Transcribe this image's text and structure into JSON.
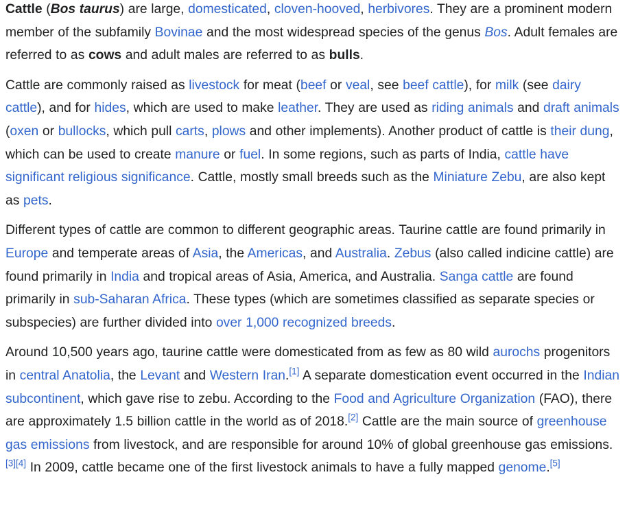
{
  "colors": {
    "text": "#202122",
    "link": "#3366cc",
    "background": "#ffffff"
  },
  "p1": {
    "cattle": "Cattle",
    "t1": " (",
    "bos_taurus": "Bos taurus",
    "t2": ") are large, ",
    "l_domesticated": "domesticated",
    "t3": ", ",
    "l_cloven": "cloven-hooved",
    "t4": ", ",
    "l_herbivores": "herbivores",
    "t5": ". They are a prominent modern member of the subfamily ",
    "l_bovinae": "Bovinae",
    "t6": " and the most widespread species of the genus ",
    "l_bos": "Bos",
    "t7": ". Adult females are referred to as ",
    "cows": "cows",
    "t8": " and adult males are referred to as ",
    "bulls": "bulls",
    "t9": "."
  },
  "p2": {
    "t1": "Cattle are commonly raised as ",
    "l_livestock": "livestock",
    "t2": " for meat (",
    "l_beef": "beef",
    "t3": " or ",
    "l_veal": "veal",
    "t4": ", see ",
    "l_beef_cattle": "beef cattle",
    "t5": "), for ",
    "l_milk": "milk",
    "t6": " (see ",
    "l_dairy_cattle": "dairy cattle",
    "t7": "), and for ",
    "l_hides": "hides",
    "t8": ", which are used to make ",
    "l_leather": "leather",
    "t9": ". They are used as ",
    "l_riding": "riding animals",
    "t10": " and ",
    "l_draft": "draft animals",
    "t11": " (",
    "l_oxen": "oxen",
    "t12": " or ",
    "l_bullocks": "bullocks",
    "t13": ", which pull ",
    "l_carts": "carts",
    "t14": ", ",
    "l_plows": "plows",
    "t15": " and other implements). Another product of cattle is ",
    "l_dung": "their dung",
    "t16": ", which can be used to create ",
    "l_manure": "manure",
    "t17": " or ",
    "l_fuel": "fuel",
    "t18": ". In some regions, such as parts of India, ",
    "l_religious": "cattle have significant religious significance",
    "t19": ". Cattle, mostly small breeds such as the ",
    "l_zebu_mini": "Miniature Zebu",
    "t20": ", are also kept as ",
    "l_pets": "pets",
    "t21": "."
  },
  "p3": {
    "t1": "Different types of cattle are common to different geographic areas. Taurine cattle are found primarily in ",
    "l_europe": "Europe",
    "t2": " and temperate areas of ",
    "l_asia": "Asia",
    "t3": ", the ",
    "l_americas": "Americas",
    "t4": ", and ",
    "l_australia": "Australia",
    "t5": ". ",
    "l_zebus": "Zebus",
    "t6": " (also called indicine cattle) are found primarily in ",
    "l_india": "India",
    "t7": " and tropical areas of Asia, America, and Australia. ",
    "l_sanga": "Sanga cattle",
    "t8": " are found primarily in ",
    "l_subsaharan": "sub-Saharan Africa",
    "t9": ". These types (which are sometimes classified as separate species or subspecies) are further divided into ",
    "l_breeds": "over 1,000 recognized breeds",
    "t10": "."
  },
  "p4": {
    "t1": "Around 10,500 years ago, taurine cattle were domesticated from as few as 80 wild ",
    "l_aurochs": "aurochs",
    "t2": " progenitors in ",
    "l_anatolia": "central Anatolia",
    "t3": ", the ",
    "l_levant": "Levant",
    "t4": " and ",
    "l_iran": "Western Iran",
    "t5": ".",
    "ref1": "[1]",
    "t6": " A separate domestication event occurred in the ",
    "l_subcontinent": "Indian subcontinent",
    "t7": ", which gave rise to zebu. According to the ",
    "l_fao": "Food and Agriculture Organization",
    "t8": " (FAO), there are approximately 1.5 billion cattle in the world as of 2018.",
    "ref2": "[2]",
    "t9": " Cattle are the main source of ",
    "l_ghg": "greenhouse gas emissions",
    "t10": " from livestock, and are responsible for around 10% of global greenhouse gas emissions.",
    "ref3": "[3]",
    "ref4": "[4]",
    "t11": " In 2009, cattle became one of the first livestock animals to have a fully mapped ",
    "l_genome": "genome",
    "t12": ".",
    "ref5": "[5]"
  }
}
